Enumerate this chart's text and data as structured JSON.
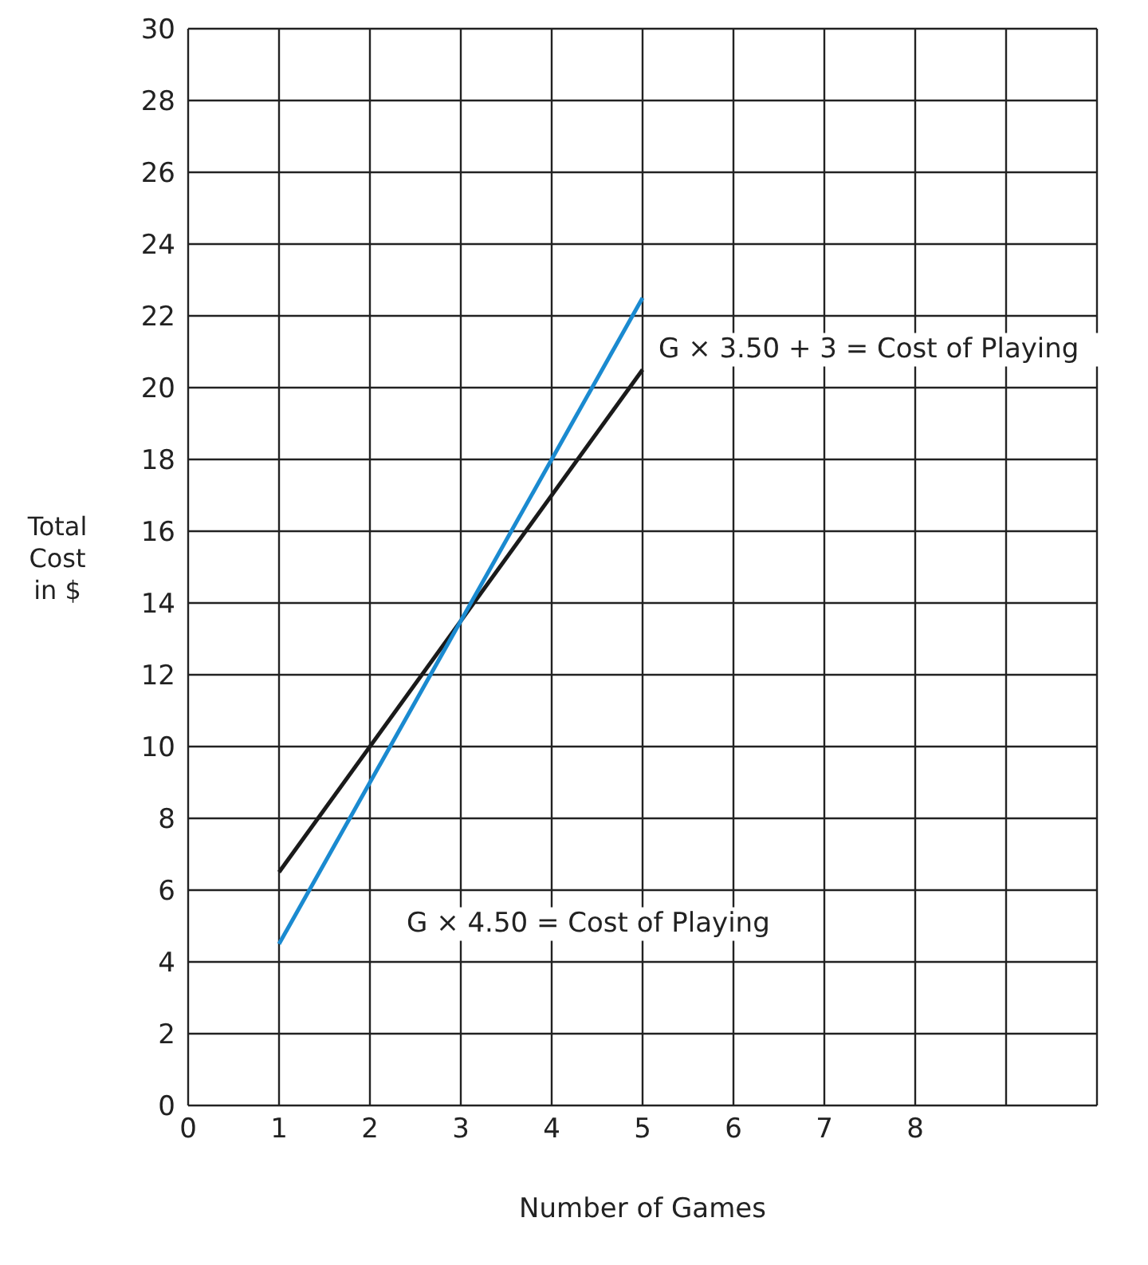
{
  "chart_data": {
    "type": "line",
    "xlabel": "Number of Games",
    "ylabel": "Total\nCost\nin $",
    "x": [
      1,
      5
    ],
    "series": [
      {
        "color": "#1a1a1a",
        "values": [
          6.5,
          20.5
        ]
      },
      {
        "color": "#1a8ad0",
        "values": [
          4.5,
          22.5
        ]
      }
    ],
    "xlim": [
      0,
      10
    ],
    "xticks": [
      0,
      1,
      2,
      3,
      4,
      5,
      6,
      7,
      8,
      {
        "value": 9,
        "label": null
      },
      {
        "value": 10,
        "label": null
      }
    ],
    "ylim": [
      0,
      30
    ],
    "yticks": [
      0,
      2,
      4,
      6,
      8,
      10,
      12,
      14,
      16,
      18,
      20,
      22,
      24,
      26,
      28,
      30
    ],
    "grid": true,
    "marker": "none",
    "line_style": "solid",
    "annotations": [
      "G × 3.50 + 3 = Cost of Playing",
      "G × 4.50 = Cost of Playing"
    ]
  }
}
